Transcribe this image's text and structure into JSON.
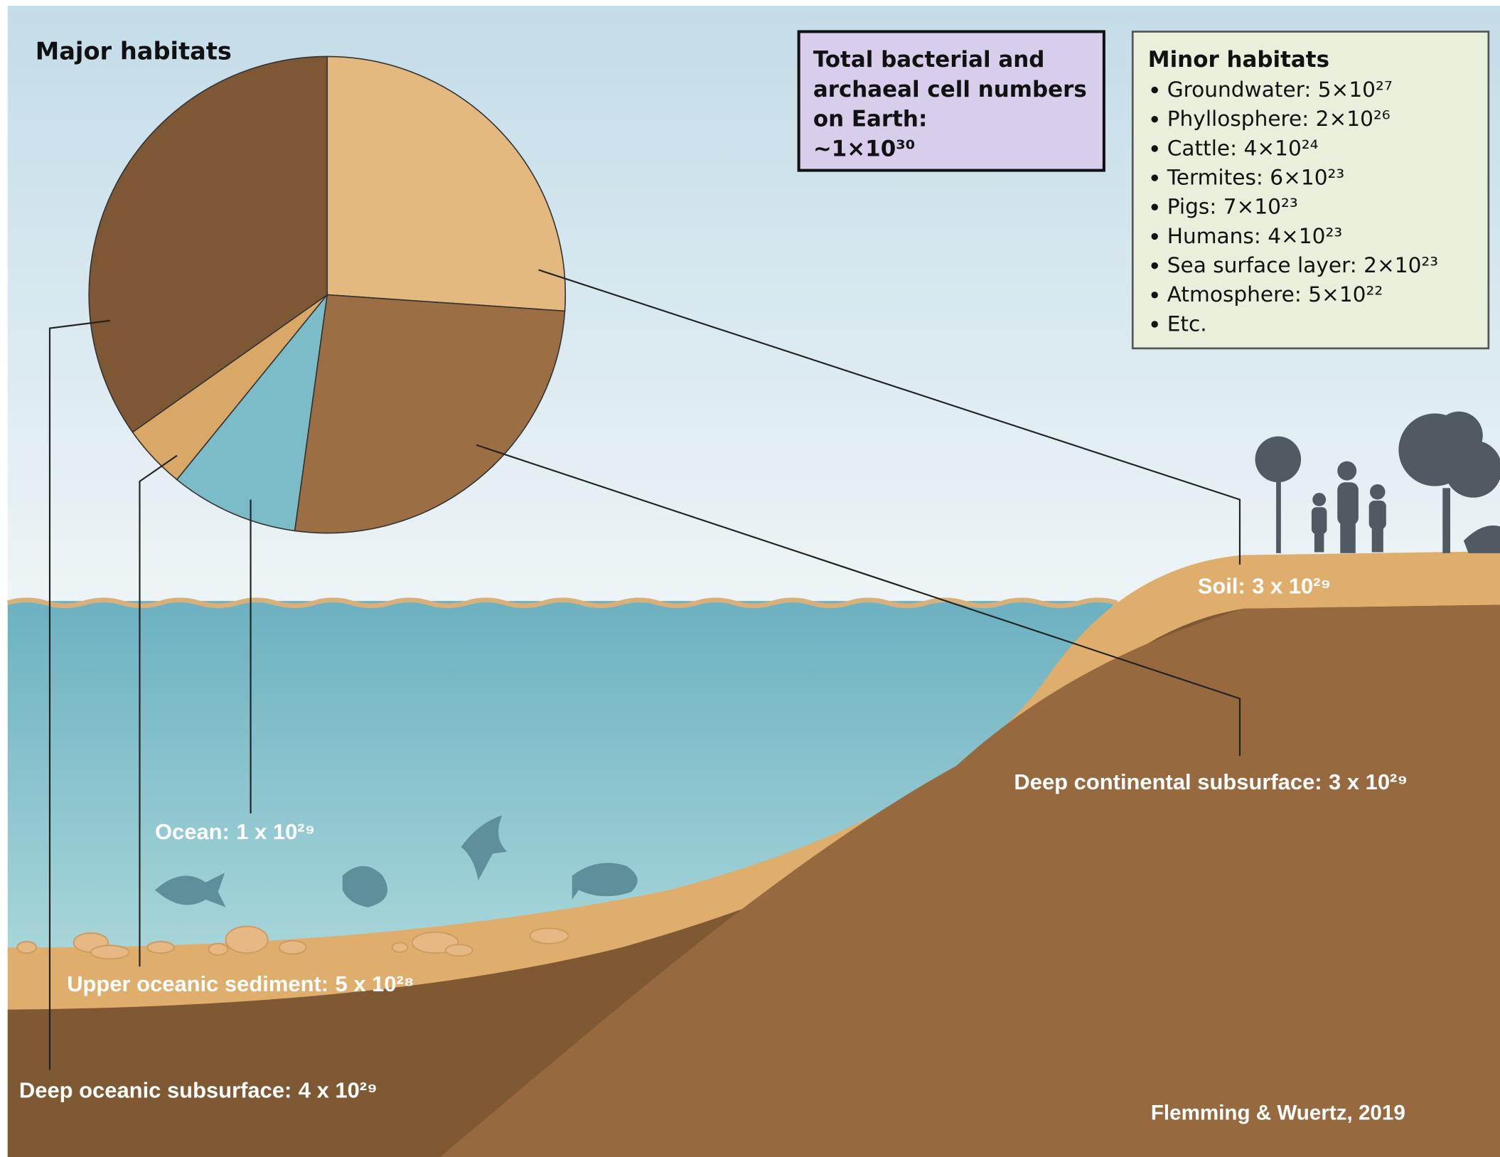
{
  "chart_data": {
    "type": "pie",
    "title": "Major habitats",
    "categories": [
      "Soil:",
      "Deep continental subsurface:",
      "Ocean:",
      "Upper oceanic sediment:",
      "Deep oceanic subsurface:"
    ],
    "values": [
      3e+29,
      3e+29,
      1e+29,
      5e+28,
      4e+29
    ],
    "value_labels": [
      "3 x 10²⁹",
      "3 x 10²⁹",
      "1 x 10²⁹",
      "5 x 10²⁸",
      "4 x 10²⁹"
    ],
    "colors": [
      "#e3b97f",
      "#9b6f43",
      "#7cbcc8",
      "#d9a766",
      "#7e5834"
    ]
  },
  "total_box": {
    "lines": [
      "Total bacterial and",
      "archaeal cell numbers",
      "on Earth:",
      "~1×10³⁰"
    ]
  },
  "minor_habitats": {
    "title": "Minor habitats",
    "items": [
      "Groundwater: 5×10²⁷",
      "Phyllosphere: 2×10²⁶",
      "Cattle: 4×10²⁴",
      "Termites: 6×10²³",
      "Pigs: 7×10²³",
      "Humans: 4×10²³",
      "Sea surface layer: 2×10²³",
      "Atmosphere: 5×10²²",
      "Etc."
    ]
  },
  "credit": "Flemming & Wuertz,  2019"
}
